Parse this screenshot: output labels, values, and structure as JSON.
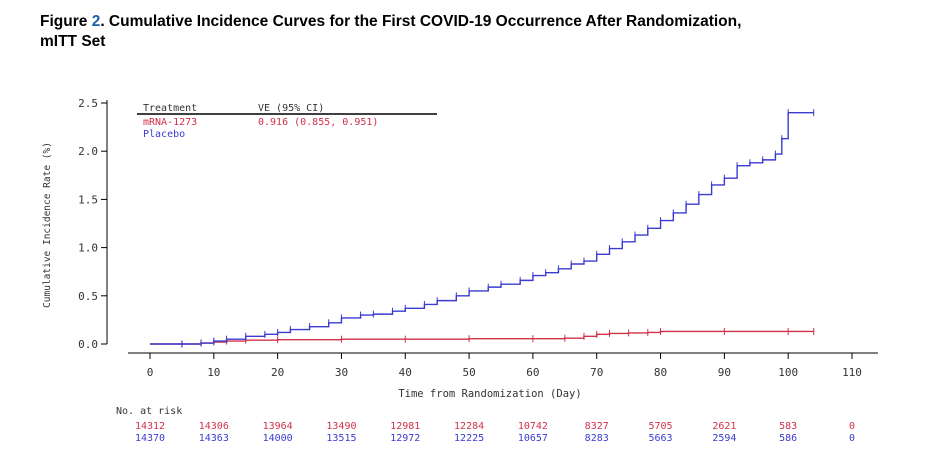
{
  "figure": {
    "label": "Figure",
    "number": "2",
    "title_rest": ". Cumulative Incidence Curves for the First COVID-19 Occurrence After Randomization,",
    "title_line2": "mITT Set"
  },
  "colors": {
    "mrna": "#d0324a",
    "placebo": "#3b3bd0",
    "axis": "#000000",
    "text": "#333333"
  },
  "legend": {
    "header_treatment": "Treatment",
    "header_ve": "VE (95% CI)",
    "rows": [
      {
        "name": "mRNA-1273",
        "ve": "0.916 (0.855, 0.951)",
        "color": "#d0324a"
      },
      {
        "name": "Placebo",
        "ve": "",
        "color": "#3b3bd0"
      }
    ]
  },
  "risk_table": {
    "label": "No. at risk",
    "rows": [
      {
        "color": "#d0324a",
        "values": [
          "14312",
          "14306",
          "13964",
          "13490",
          "12981",
          "12284",
          "10742",
          "8327",
          "5705",
          "2621",
          "583",
          "0"
        ]
      },
      {
        "color": "#3b3bd0",
        "values": [
          "14370",
          "14363",
          "14000",
          "13515",
          "12972",
          "12225",
          "10657",
          "8283",
          "5663",
          "2594",
          "586",
          "0"
        ]
      }
    ]
  },
  "chart_data": {
    "type": "line",
    "xlabel": "Time from Randomization (Day)",
    "ylabel": "Cumulative Incidence Rate (%)",
    "xlim": [
      0,
      110
    ],
    "ylim": [
      0,
      2.5
    ],
    "xticks": [
      "0",
      "10",
      "20",
      "30",
      "40",
      "50",
      "60",
      "70",
      "80",
      "90",
      "100",
      "110"
    ],
    "yticks": [
      "0.0",
      "0.5",
      "1.0",
      "1.5",
      "2.0",
      "2.5"
    ],
    "series": [
      {
        "name": "mRNA-1273",
        "color": "#d0324a",
        "x": [
          0,
          5,
          8,
          10,
          12,
          15,
          20,
          30,
          40,
          50,
          60,
          65,
          68,
          70,
          72,
          75,
          78,
          80,
          90,
          100,
          104
        ],
        "y": [
          0,
          0,
          0.01,
          0.02,
          0.03,
          0.04,
          0.045,
          0.05,
          0.05,
          0.055,
          0.055,
          0.06,
          0.08,
          0.1,
          0.11,
          0.115,
          0.12,
          0.13,
          0.13,
          0.13,
          0.13
        ]
      },
      {
        "name": "Placebo",
        "color": "#3b3bd0",
        "x": [
          0,
          5,
          8,
          10,
          12,
          15,
          18,
          20,
          22,
          25,
          28,
          30,
          33,
          35,
          38,
          40,
          43,
          45,
          48,
          50,
          53,
          55,
          58,
          60,
          62,
          64,
          66,
          68,
          70,
          72,
          74,
          76,
          78,
          80,
          82,
          84,
          86,
          88,
          90,
          92,
          94,
          96,
          98,
          99,
          100,
          104
        ],
        "y": [
          0,
          0,
          0.01,
          0.03,
          0.05,
          0.08,
          0.1,
          0.12,
          0.15,
          0.18,
          0.22,
          0.27,
          0.3,
          0.31,
          0.34,
          0.37,
          0.41,
          0.45,
          0.5,
          0.55,
          0.59,
          0.62,
          0.66,
          0.71,
          0.74,
          0.78,
          0.83,
          0.86,
          0.93,
          0.99,
          1.06,
          1.13,
          1.2,
          1.28,
          1.36,
          1.45,
          1.55,
          1.65,
          1.72,
          1.85,
          1.88,
          1.91,
          1.97,
          2.13,
          2.4,
          2.4
        ]
      }
    ]
  }
}
